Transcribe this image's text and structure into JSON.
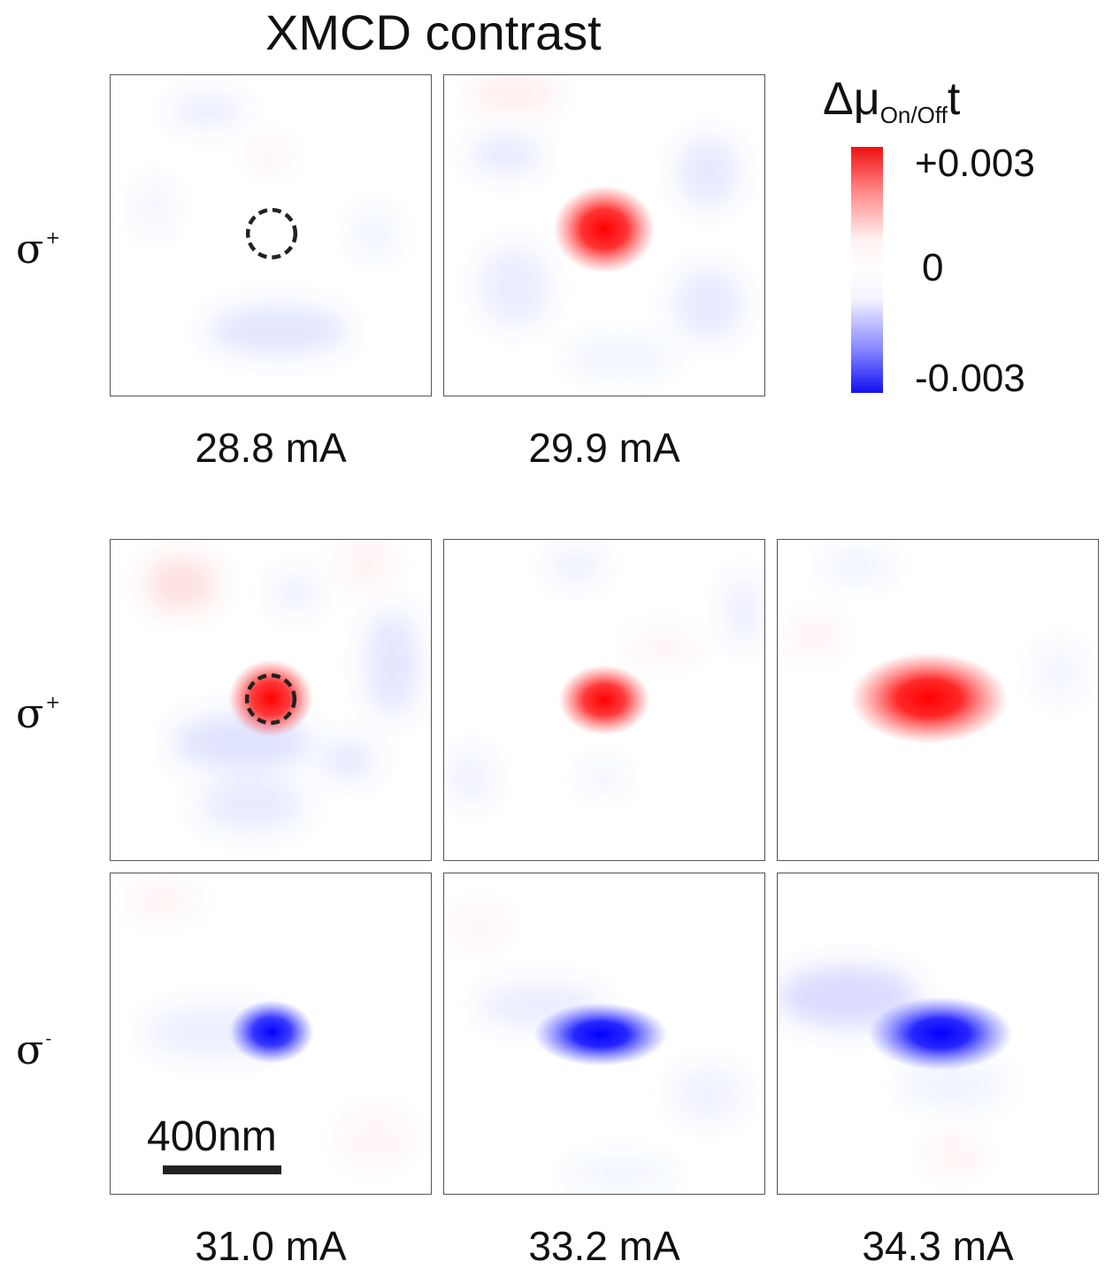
{
  "title": "XMCD contrast",
  "colorbar": {
    "label_main": "Δμ",
    "label_sub": "On/Off",
    "label_tail": "t",
    "ticks": [
      "+0.003",
      "0",
      "-0.003"
    ],
    "colors": {
      "positive": "#ff0000",
      "zero": "#ffffff",
      "negative": "#0000ff"
    }
  },
  "row_labels": {
    "top": {
      "symbol": "σ",
      "sign": "+"
    },
    "middle": {
      "symbol": "σ",
      "sign": "+"
    },
    "bottom": {
      "symbol": "σ",
      "sign": "-"
    }
  },
  "currents": [
    "28.8 mA",
    "29.9 mA",
    "31.0 mA",
    "33.2 mA",
    "34.3 mA"
  ],
  "scale_bar": {
    "label": "400nm"
  },
  "panels": [
    {
      "current": "28.8 mA",
      "helicity": "σ+",
      "spot": "none",
      "marker": "dashed-circle"
    },
    {
      "current": "29.9 mA",
      "helicity": "σ+",
      "spot": "red"
    },
    {
      "current": "31.0 mA",
      "helicity": "σ+",
      "spot": "red",
      "marker": "dashed-circle"
    },
    {
      "current": "33.2 mA",
      "helicity": "σ+",
      "spot": "red"
    },
    {
      "current": "34.3 mA",
      "helicity": "σ+",
      "spot": "red"
    },
    {
      "current": "31.0 mA",
      "helicity": "σ-",
      "spot": "blue"
    },
    {
      "current": "33.2 mA",
      "helicity": "σ-",
      "spot": "blue"
    },
    {
      "current": "34.3 mA",
      "helicity": "σ-",
      "spot": "blue"
    }
  ]
}
